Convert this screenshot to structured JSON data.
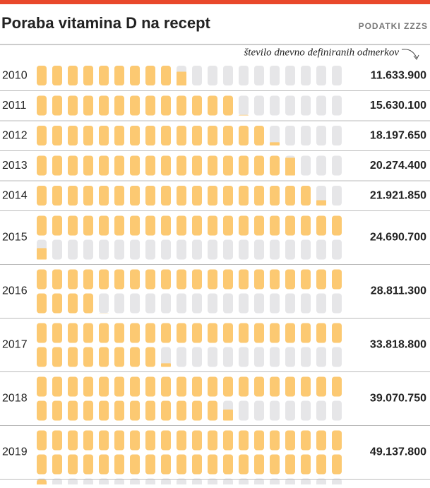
{
  "chart_data": {
    "type": "pictogram",
    "title": "Poraba vitamina D na recept",
    "source": "PODATKI ZZZS",
    "annotation": "število dnevno definiranih odmerkov",
    "categories": [
      "2010",
      "2011",
      "2012",
      "2013",
      "2014",
      "2015",
      "2016",
      "2017",
      "2018",
      "2019"
    ],
    "values": [
      11633900,
      15630100,
      18197650,
      20274400,
      21921850,
      24690700,
      28811300,
      33818800,
      39070750,
      49137800
    ],
    "value_labels": [
      "11.633.900",
      "15.630.100",
      "18.197.650",
      "20.274.400",
      "21.921.850",
      "24.690.700",
      "28.811.300",
      "33.818.800",
      "39.070.750",
      "49.137.800"
    ],
    "color": "#fcc972"
  }
}
